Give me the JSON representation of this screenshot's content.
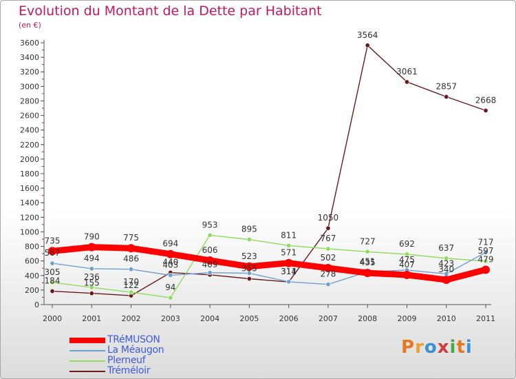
{
  "title": "Evolution du Montant de la Dette par Habitant",
  "subtitle": "(en €)",
  "logo": {
    "text": "Proxiti",
    "colors": [
      "#e6781e",
      "#f0a030",
      "#3c8fd0",
      "#d23c3c",
      "#48a848",
      "#e6781e",
      "#3c8fd0"
    ]
  },
  "chart_data": {
    "type": "line",
    "categories": [
      "2000",
      "2001",
      "2002",
      "2003",
      "2004",
      "2005",
      "2006",
      "2007",
      "2008",
      "2009",
      "2010",
      "2011"
    ],
    "ylim": [
      0,
      3600
    ],
    "yticks": [
      0,
      200,
      400,
      600,
      800,
      1000,
      1200,
      1400,
      1600,
      1800,
      2000,
      2200,
      2400,
      2600,
      2800,
      3000,
      3200,
      3400,
      3600
    ],
    "grid": false,
    "legend_position": "bottom-left",
    "series": [
      {
        "name": "TRéMUSON",
        "color": "#ff0000",
        "values": [
          735,
          790,
          775,
          694,
          606,
          523,
          571,
          502,
          435,
          407,
          340,
          479
        ],
        "labels": [
          "735",
          "790",
          "775",
          "694",
          "606",
          "523",
          "571",
          "502",
          "435",
          "407",
          "340",
          "479"
        ]
      },
      {
        "name": "La Méaugon",
        "color": "#6f9fcf",
        "values": [
          567,
          494,
          486,
          403,
          439,
          431,
          314,
          278,
          451,
          475,
          423,
          717
        ],
        "labels": [
          "567",
          "494",
          "486",
          "403",
          "",
          "",
          "314",
          "278",
          "451",
          "475",
          "423",
          "717"
        ]
      },
      {
        "name": "Plerneuf",
        "color": "#8edc5c",
        "values": [
          305,
          236,
          170,
          94,
          953,
          895,
          811,
          767,
          727,
          692,
          637,
          597
        ],
        "labels": [
          "305",
          "236",
          "170",
          "94",
          "953",
          "895",
          "811",
          "767",
          "727",
          "692",
          "637",
          "597"
        ]
      },
      {
        "name": "Tréméloir",
        "color": "#6b1a1a",
        "values": [
          184,
          155,
          122,
          440,
          409,
          355,
          311,
          1050,
          3564,
          3061,
          2857,
          2668
        ],
        "labels": [
          "184",
          "155",
          "122",
          "440",
          "409",
          "355",
          "311",
          "1050",
          "3564",
          "3061",
          "2857",
          "2668"
        ]
      }
    ]
  }
}
